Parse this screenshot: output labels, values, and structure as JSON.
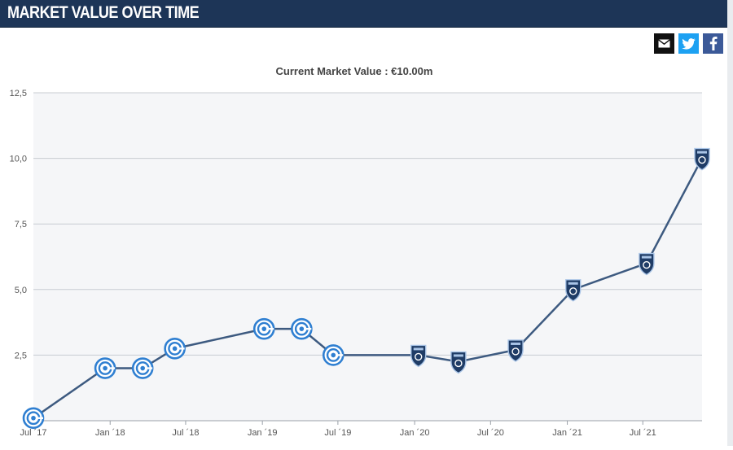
{
  "header": {
    "title": "MARKET VALUE OVER TIME"
  },
  "share": {
    "email_icon": "envelope-icon",
    "twitter_icon": "twitter-bird-icon",
    "facebook_icon": "facebook-f-icon"
  },
  "colors": {
    "header_bg": "#1d3557",
    "line": "#3d5a80",
    "plot_bg": "#f5f6f8",
    "marker_blue": "#2f7fd1",
    "marker_navy": "#1f3c66"
  },
  "chart_data": {
    "type": "line",
    "title": "Current Market Value : €10.00m",
    "xlabel": "",
    "ylabel": "",
    "ylim": [
      0,
      12.5
    ],
    "y_ticks": [
      "12,5",
      "10,0",
      "7,5",
      "5,0",
      "2,5"
    ],
    "y_tick_values": [
      12.5,
      10.0,
      7.5,
      5.0,
      2.5
    ],
    "x_tick_labels": [
      "Jul ´17",
      "Jan ´18",
      "Jul ´18",
      "Jan ´19",
      "Jul ´19",
      "Jan ´20",
      "Jul ´20",
      "Jan ´21",
      "Jul ´21"
    ],
    "x_tick_dates": [
      "2017-07-01",
      "2018-01-01",
      "2018-07-01",
      "2019-01-01",
      "2019-07-01",
      "2020-01-01",
      "2020-07-01",
      "2021-01-01",
      "2021-07-01"
    ],
    "xlim": [
      "2017-07-01",
      "2021-11-20"
    ],
    "grid": true,
    "legend": "none",
    "series": [
      {
        "points": [
          {
            "date": "2017-07-01",
            "value": 0.1,
            "club": "genoa"
          },
          {
            "date": "2017-12-20",
            "value": 2.0,
            "club": "genoa"
          },
          {
            "date": "2018-03-20",
            "value": 2.0,
            "club": "genoa"
          },
          {
            "date": "2018-06-05",
            "value": 2.75,
            "club": "genoa"
          },
          {
            "date": "2019-01-05",
            "value": 3.5,
            "club": "genoa"
          },
          {
            "date": "2019-04-05",
            "value": 3.5,
            "club": "genoa"
          },
          {
            "date": "2019-06-20",
            "value": 2.5,
            "club": "genoa"
          },
          {
            "date": "2020-01-10",
            "value": 2.5,
            "club": "empoli"
          },
          {
            "date": "2020-04-15",
            "value": 2.25,
            "club": "empoli"
          },
          {
            "date": "2020-08-30",
            "value": 2.7,
            "club": "empoli"
          },
          {
            "date": "2021-01-15",
            "value": 5.0,
            "club": "empoli"
          },
          {
            "date": "2021-07-10",
            "value": 6.0,
            "club": "empoli"
          },
          {
            "date": "2021-11-20",
            "value": 10.0,
            "club": "empoli"
          }
        ]
      }
    ]
  }
}
